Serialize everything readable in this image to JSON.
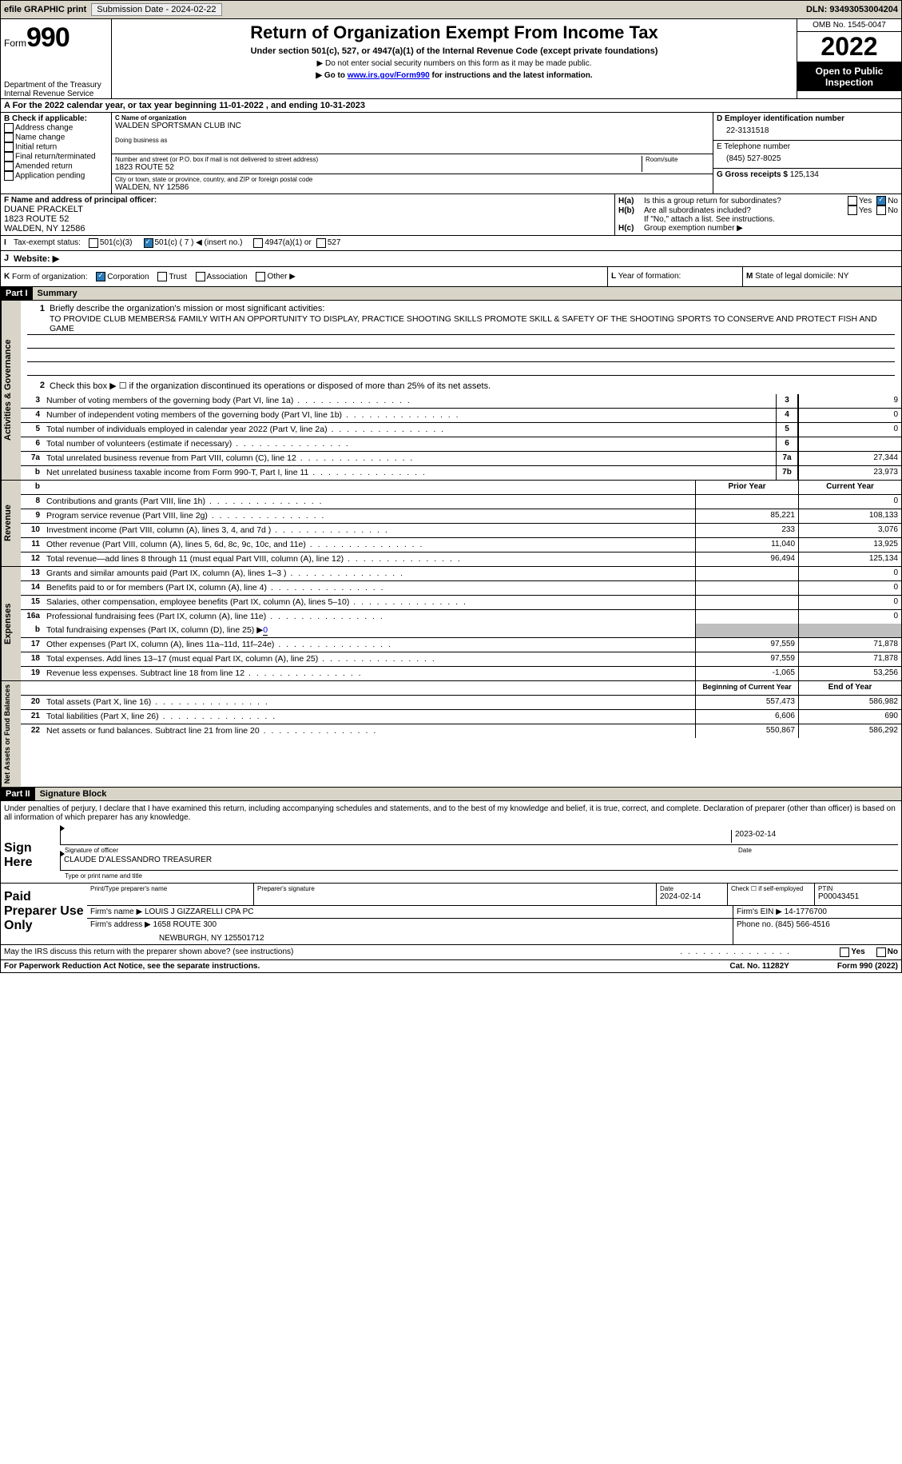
{
  "top": {
    "efile": "efile GRAPHIC print",
    "sub_lbl": "Submission Date - ",
    "sub_date": "2024-02-22",
    "dln_lbl": "DLN: ",
    "dln": "93493053004204"
  },
  "hdr": {
    "form": "Form",
    "num": "990",
    "dept": "Department of the Treasury",
    "irs": "Internal Revenue Service",
    "title": "Return of Organization Exempt From Income Tax",
    "sub": "Under section 501(c), 527, or 4947(a)(1) of the Internal Revenue Code (except private foundations)",
    "note1": "▶ Do not enter social security numbers on this form as it may be made public.",
    "note2_a": "▶ Go to ",
    "note2_link": "www.irs.gov/Form990",
    "note2_b": " for instructions and the latest information.",
    "omb": "OMB No. 1545-0047",
    "year": "2022",
    "open": "Open to Public Inspection"
  },
  "a": {
    "text_a": "A For the 2022 calendar year, or tax year beginning ",
    "begin": "11-01-2022",
    "text_b": " , and ending ",
    "end": "10-31-2023"
  },
  "b": {
    "hdr": "B Check if applicable:",
    "items": [
      "Address change",
      "Name change",
      "Initial return",
      "Final return/terminated",
      "Amended return",
      "Application pending"
    ]
  },
  "c": {
    "lbl": "C Name of organization",
    "name": "WALDEN SPORTSMAN CLUB INC",
    "dba_lbl": "Doing business as",
    "dba": "",
    "street_lbl": "Number and street (or P.O. box if mail is not delivered to street address)",
    "room_lbl": "Room/suite",
    "street": "1823 ROUTE 52",
    "city_lbl": "City or town, state or province, country, and ZIP or foreign postal code",
    "city": "WALDEN, NY  12586"
  },
  "d": {
    "lbl": "D Employer identification number",
    "val": "22-3131518"
  },
  "e": {
    "lbl": "E Telephone number",
    "val": "(845) 527-8025"
  },
  "g": {
    "lbl": "G Gross receipts $ ",
    "val": "125,134"
  },
  "f": {
    "lbl": "F  Name and address of principal officer:",
    "name": "DUANE PRACKELT",
    "street": "1823 ROUTE 52",
    "city": "WALDEN, NY  12586"
  },
  "h": {
    "a": "Is this a group return for subordinates?",
    "b": "Are all subordinates included?",
    "b_note": "If \"No,\" attach a list. See instructions.",
    "c": "Group exemption number ▶",
    "yes": "Yes",
    "no": "No",
    "ha": "H(a)",
    "hb": "H(b)",
    "hc": "H(c)"
  },
  "i": {
    "lbl": "I",
    "txt": "Tax-exempt status:",
    "o1": "501(c)(3)",
    "o2": "501(c) ( 7 ) ◀ (insert no.)",
    "o3": "4947(a)(1) or",
    "o4": "527"
  },
  "j": {
    "lbl": "J",
    "txt": "Website: ▶"
  },
  "k": {
    "lbl": "K",
    "txt": "Form of organization:",
    "o1": "Corporation",
    "o2": "Trust",
    "o3": "Association",
    "o4": "Other ▶"
  },
  "l": {
    "lbl": "L",
    "txt": "Year of formation:"
  },
  "m": {
    "lbl": "M",
    "txt": "State of legal domicile: NY"
  },
  "p1": {
    "lbl": "Part I",
    "title": "Summary"
  },
  "sum": {
    "q1_lbl": "1",
    "q1": "Briefly describe the organization's mission or most significant activities:",
    "mission": "TO PROVIDE CLUB MEMBERS& FAMILY WITH AN OPPORTUNITY TO DISPLAY, PRACTICE SHOOTING SKILLS PROMOTE SKILL & SAFETY OF THE SHOOTING SPORTS TO CONSERVE AND PROTECT FISH AND GAME",
    "q2_lbl": "2",
    "q2": "Check this box ▶ ☐ if the organization discontinued its operations or disposed of more than 25% of its net assets.",
    "side_ag": "Activities & Governance",
    "side_rev": "Revenue",
    "side_exp": "Expenses",
    "side_net": "Net Assets or Fund Balances",
    "prior": "Prior Year",
    "current": "Current Year",
    "boy": "Beginning of Current Year",
    "eoy": "End of Year",
    "rows_top": [
      {
        "n": "3",
        "d": "Number of voting members of the governing body (Part VI, line 1a)",
        "bn": "3",
        "v": "9"
      },
      {
        "n": "4",
        "d": "Number of independent voting members of the governing body (Part VI, line 1b)",
        "bn": "4",
        "v": "0"
      },
      {
        "n": "5",
        "d": "Total number of individuals employed in calendar year 2022 (Part V, line 2a)",
        "bn": "5",
        "v": "0"
      },
      {
        "n": "6",
        "d": "Total number of volunteers (estimate if necessary)",
        "bn": "6",
        "v": ""
      },
      {
        "n": "7a",
        "d": "Total unrelated business revenue from Part VIII, column (C), line 12",
        "bn": "7a",
        "v": "27,344"
      },
      {
        "n": "b",
        "d": "Net unrelated business taxable income from Form 990-T, Part I, line 11",
        "bn": "7b",
        "v": "23,973"
      }
    ],
    "rows_rev": [
      {
        "n": "8",
        "d": "Contributions and grants (Part VIII, line 1h)",
        "p": "",
        "c": "0"
      },
      {
        "n": "9",
        "d": "Program service revenue (Part VIII, line 2g)",
        "p": "85,221",
        "c": "108,133"
      },
      {
        "n": "10",
        "d": "Investment income (Part VIII, column (A), lines 3, 4, and 7d )",
        "p": "233",
        "c": "3,076"
      },
      {
        "n": "11",
        "d": "Other revenue (Part VIII, column (A), lines 5, 6d, 8c, 9c, 10c, and 11e)",
        "p": "11,040",
        "c": "13,925"
      },
      {
        "n": "12",
        "d": "Total revenue—add lines 8 through 11 (must equal Part VIII, column (A), line 12)",
        "p": "96,494",
        "c": "125,134"
      }
    ],
    "rows_exp": [
      {
        "n": "13",
        "d": "Grants and similar amounts paid (Part IX, column (A), lines 1–3 )",
        "p": "",
        "c": "0"
      },
      {
        "n": "14",
        "d": "Benefits paid to or for members (Part IX, column (A), line 4)",
        "p": "",
        "c": "0"
      },
      {
        "n": "15",
        "d": "Salaries, other compensation, employee benefits (Part IX, column (A), lines 5–10)",
        "p": "",
        "c": "0"
      },
      {
        "n": "16a",
        "d": "Professional fundraising fees (Part IX, column (A), line 11e)",
        "p": "",
        "c": "0"
      }
    ],
    "q16b_lbl": "b",
    "q16b": "Total fundraising expenses (Part IX, column (D), line 25) ▶",
    "q16b_v": "0",
    "rows_exp2": [
      {
        "n": "17",
        "d": "Other expenses (Part IX, column (A), lines 11a–11d, 11f–24e)",
        "p": "97,559",
        "c": "71,878"
      },
      {
        "n": "18",
        "d": "Total expenses. Add lines 13–17 (must equal Part IX, column (A), line 25)",
        "p": "97,559",
        "c": "71,878"
      },
      {
        "n": "19",
        "d": "Revenue less expenses. Subtract line 18 from line 12",
        "p": "-1,065",
        "c": "53,256"
      }
    ],
    "rows_net": [
      {
        "n": "20",
        "d": "Total assets (Part X, line 16)",
        "p": "557,473",
        "c": "586,982"
      },
      {
        "n": "21",
        "d": "Total liabilities (Part X, line 26)",
        "p": "6,606",
        "c": "690"
      },
      {
        "n": "22",
        "d": "Net assets or fund balances. Subtract line 21 from line 20",
        "p": "550,867",
        "c": "586,292"
      }
    ]
  },
  "p2": {
    "lbl": "Part II",
    "title": "Signature Block",
    "decl": "Under penalties of perjury, I declare that I have examined this return, including accompanying schedules and statements, and to the best of my knowledge and belief, it is true, correct, and complete. Declaration of preparer (other than officer) is based on all information of which preparer has any knowledge.",
    "sign_here": "Sign Here",
    "sig_of": "Signature of officer",
    "date": "Date",
    "sig_date": "2023-02-14",
    "name": "CLAUDE D'ALESSANDRO TREASURER",
    "name_lbl": "Type or print name and title",
    "paid": "Paid Preparer Use Only",
    "pp_name_lbl": "Print/Type preparer's name",
    "pp_sig_lbl": "Preparer's signature",
    "pp_date_lbl": "Date",
    "pp_date": "2024-02-14",
    "pp_check": "Check ☐ if self-employed",
    "ptin_lbl": "PTIN",
    "ptin": "P00043451",
    "firm_name_lbl": "Firm's name      ▶ ",
    "firm_name": "LOUIS J GIZZARELLI CPA PC",
    "firm_ein_lbl": "Firm's EIN ▶ ",
    "firm_ein": "14-1776700",
    "firm_addr_lbl": "Firm's address ▶ ",
    "firm_addr": "1658 ROUTE 300",
    "firm_city": "NEWBURGH, NY  125501712",
    "phone_lbl": "Phone no. ",
    "phone": "(845) 566-4516",
    "discuss": "May the IRS discuss this return with the preparer shown above? (see instructions)"
  },
  "ftr": {
    "pra": "For Paperwork Reduction Act Notice, see the separate instructions.",
    "cat": "Cat. No. 11282Y",
    "form": "Form 990 (2022)"
  }
}
